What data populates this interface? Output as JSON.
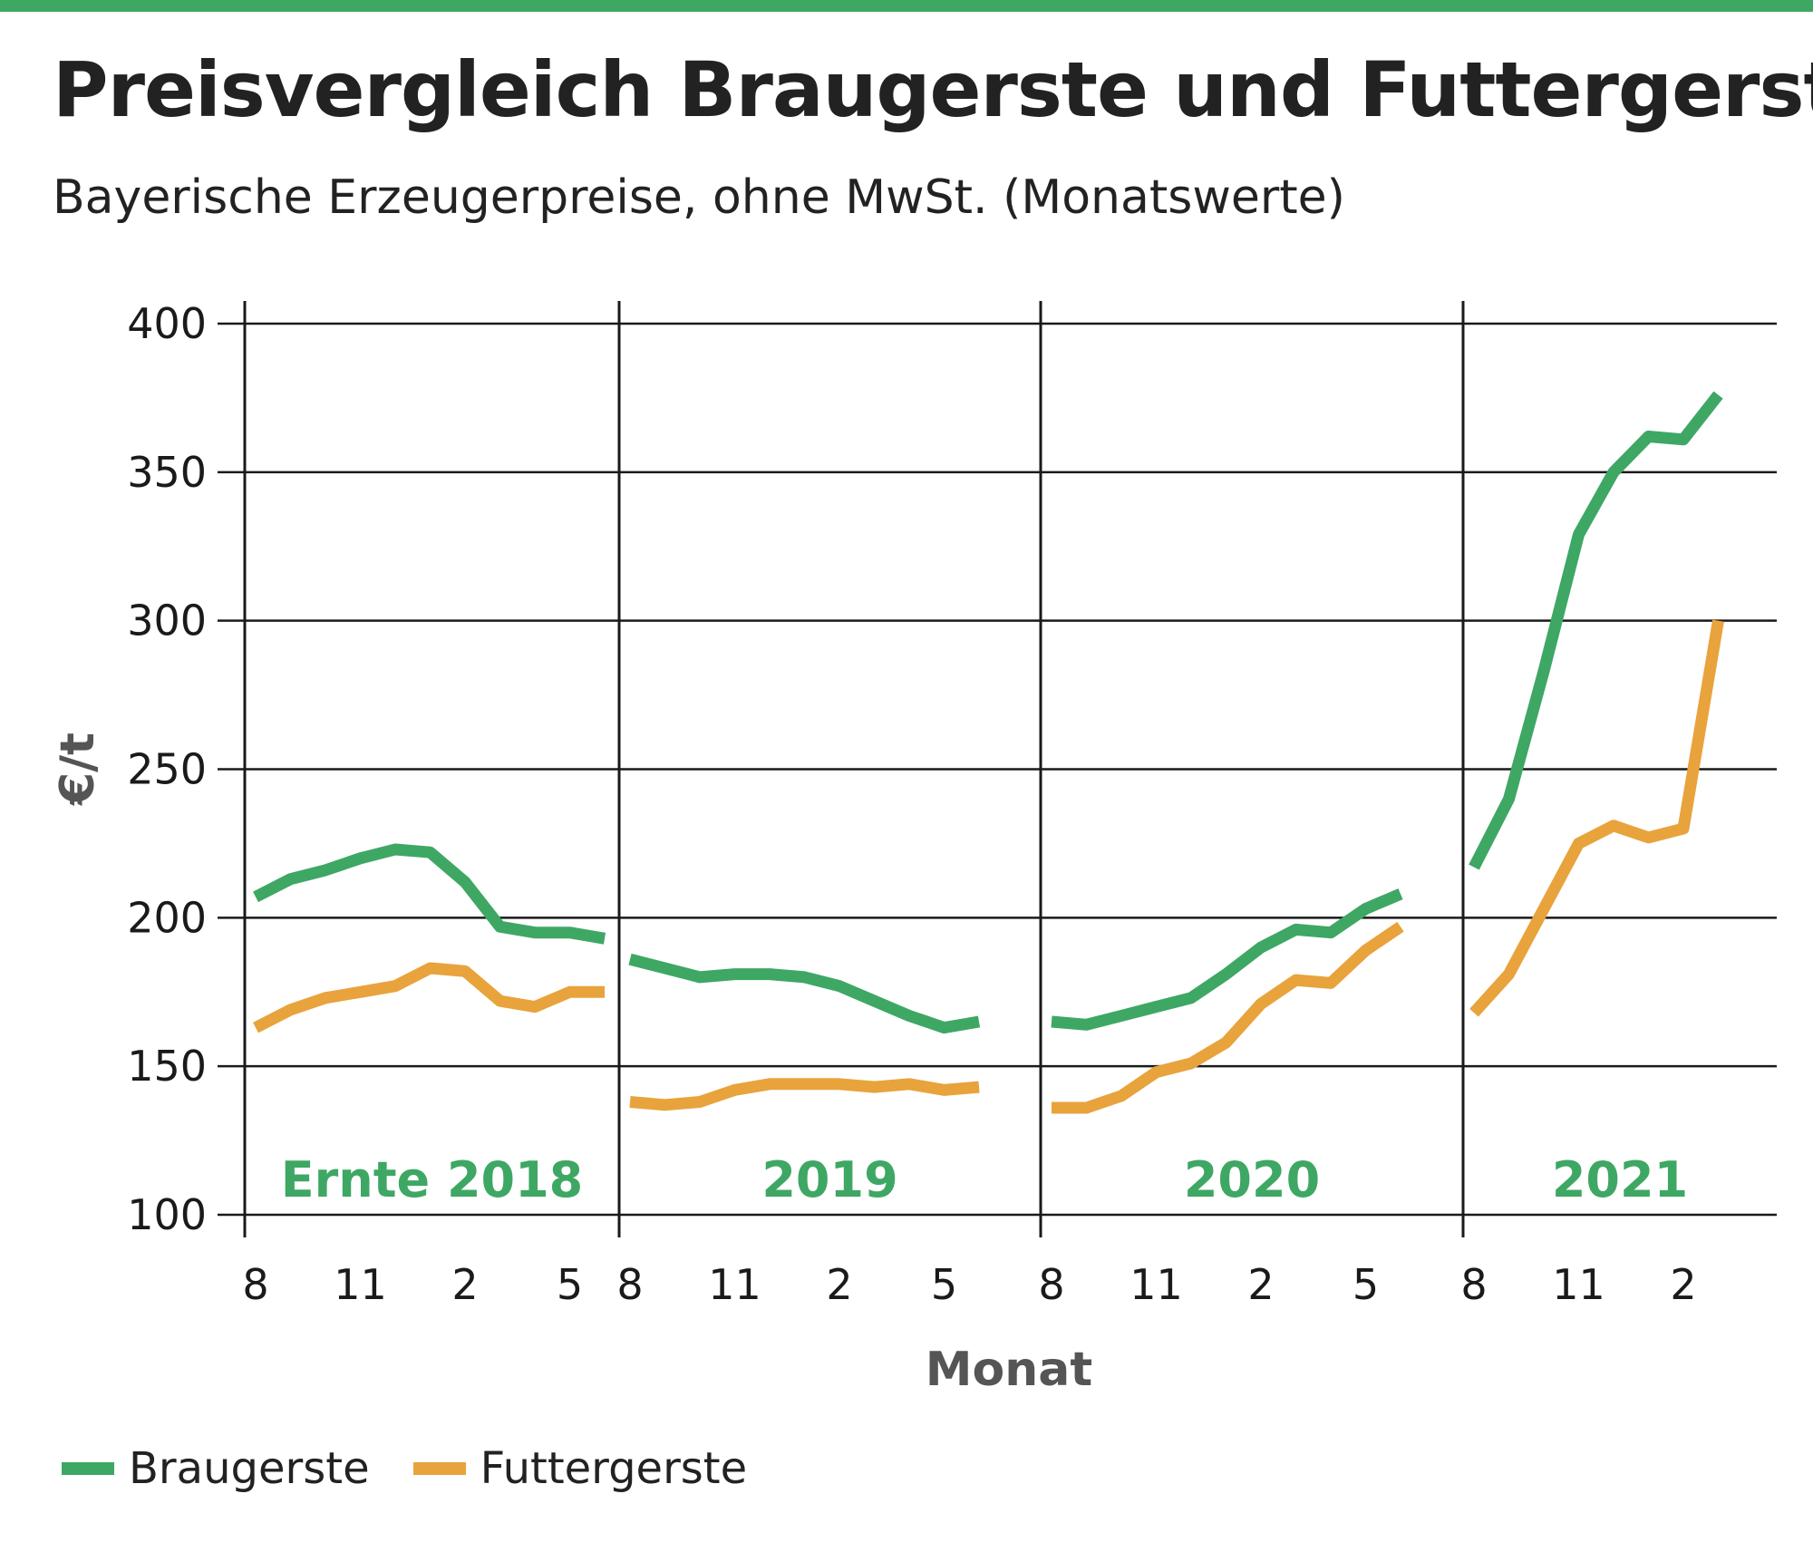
{
  "colors": {
    "accent": "#3ea764",
    "braugerste": "#3ea764",
    "futtergerste": "#e8a33c",
    "grid": "#1a1a1a",
    "text": "#222222"
  },
  "title": "Preisvergleich Braugerste und Futtergerste",
  "subtitle": "Bayerische Erzeugerpreise, ohne MwSt. (Monatswerte)",
  "chart_data": {
    "type": "line",
    "ylabel": "€/t",
    "xlabel": "Monat",
    "ylim": [
      100,
      400
    ],
    "yticks": [
      100,
      150,
      200,
      250,
      300,
      350,
      400
    ],
    "grid": true,
    "legend_position": "bottom-left",
    "periods": [
      {
        "label": "Ernte 2018",
        "months": [
          8,
          9,
          10,
          11,
          12,
          1,
          2,
          3,
          4,
          5,
          6
        ],
        "tick_labels": [
          "8",
          "11",
          "2",
          "5"
        ]
      },
      {
        "label": "2019",
        "months": [
          8,
          9,
          10,
          11,
          12,
          1,
          2,
          3,
          4,
          5,
          6
        ],
        "tick_labels": [
          "8",
          "11",
          "2",
          "5"
        ]
      },
      {
        "label": "2020",
        "months": [
          8,
          9,
          10,
          11,
          12,
          1,
          2,
          3,
          4,
          5,
          6
        ],
        "tick_labels": [
          "8",
          "11",
          "2",
          "5"
        ]
      },
      {
        "label": "2021",
        "months": [
          8,
          9,
          10,
          11,
          12,
          1,
          2,
          3
        ],
        "tick_labels": [
          "8",
          "11",
          "2"
        ]
      }
    ],
    "series": [
      {
        "name": "Braugerste",
        "color": "#3ea764",
        "values": [
          [
            207,
            213,
            216,
            220,
            223,
            222,
            212,
            197,
            195,
            195,
            193
          ],
          [
            186,
            183,
            180,
            181,
            181,
            180,
            177,
            172,
            167,
            163,
            165
          ],
          [
            165,
            164,
            167,
            170,
            173,
            181,
            190,
            196,
            195,
            203,
            208
          ],
          [
            217,
            240,
            283,
            329,
            350,
            362,
            361,
            376
          ]
        ]
      },
      {
        "name": "Futtergerste",
        "color": "#e8a33c",
        "values": [
          [
            163,
            169,
            173,
            175,
            177,
            183,
            182,
            172,
            170,
            175,
            175
          ],
          [
            138,
            137,
            138,
            142,
            144,
            144,
            144,
            143,
            144,
            142,
            143
          ],
          [
            136,
            136,
            140,
            148,
            151,
            158,
            171,
            179,
            178,
            189,
            197
          ],
          [
            168,
            181,
            203,
            225,
            231,
            227,
            230,
            300
          ]
        ]
      }
    ]
  }
}
